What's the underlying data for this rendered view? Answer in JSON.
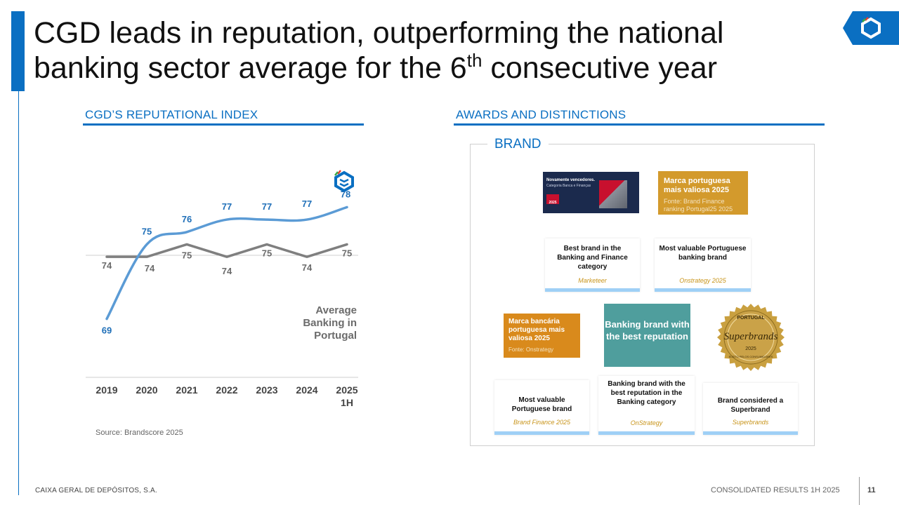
{
  "header": {
    "title_part1": "CGD leads in reputation, outperforming the national banking sector average for the 6",
    "title_sup": "th",
    "title_part2": " consecutive year"
  },
  "left_section": {
    "heading": "CGD’S REPUTATIONAL INDEX"
  },
  "right_section": {
    "heading": "AWARDS AND DISTINCTIONS",
    "box_label": "BRAND"
  },
  "chart_data": {
    "type": "line",
    "categories": [
      "2019",
      "2020",
      "2021",
      "2022",
      "2023",
      "2024",
      "2025 1H"
    ],
    "category_lines": [
      [
        "2019"
      ],
      [
        "2020"
      ],
      [
        "2021"
      ],
      [
        "2022"
      ],
      [
        "2023"
      ],
      [
        "2024"
      ],
      [
        "2025",
        "1H"
      ]
    ],
    "series": [
      {
        "name": "CGD",
        "values": [
          69,
          75,
          76,
          77,
          77,
          77,
          78
        ],
        "color": "#5b9bd5",
        "label_color": "#1f6fb8"
      },
      {
        "name": "Average Banking in Portugal",
        "values": [
          74,
          74,
          75,
          74,
          75,
          74,
          75
        ],
        "color": "#7f7f7f",
        "label_color": "#6b6b6b"
      }
    ],
    "average_label_lines": [
      "Average",
      "Banking in",
      "Portugal"
    ],
    "ylim": [
      67,
      80
    ],
    "source": "Source: Brandscore 2025"
  },
  "awards": {
    "banner1": {
      "line1": "Novamente vencedores.",
      "line2": "Categoria Banca e Finanças",
      "badge": "2025"
    },
    "banner2": {
      "title": "Marca portuguesa mais valiosa 2025",
      "sub": "Fonte: Brand Finance ranking Portugal25 2025"
    },
    "banner3": {
      "title": "Marca bancária portuguesa mais valiosa 2025",
      "sub": "Fonte: Onstrategy"
    },
    "card1": {
      "title": "Best brand in the Banking and Finance category",
      "source": "Marketeer"
    },
    "card2": {
      "title": "Most valuable Portuguese banking brand",
      "source": "Onstrategy 2025"
    },
    "card3": {
      "title": "Most valuable Portuguese brand",
      "source": "Brand Finance 2025"
    },
    "card4": {
      "title": "Banking brand with the best reputation in the Banking category",
      "source": "OnStrategy"
    },
    "card5": {
      "title": "Brand considered a Superbrand",
      "source": "Superbrands"
    },
    "teal": "Banking brand with the best reputation",
    "seal": {
      "top": "PORTUGAL",
      "middle": "Superbrands",
      "year": "2025",
      "bottom": "ELEITO PELOS CONSUMIDORES"
    }
  },
  "footer": {
    "company": "CAIXA GERAL DE DEPÓSITOS, S.A.",
    "report": "CONSOLIDATED RESULTS 1H 2025",
    "page": "11"
  },
  "colors": {
    "brand_blue": "#0a6fc2",
    "cgd_line": "#5b9bd5",
    "avg_line": "#7f7f7f",
    "card_accent": "#9fd0f6",
    "gold": "#d39a2c",
    "teal": "#4f9e9d"
  }
}
